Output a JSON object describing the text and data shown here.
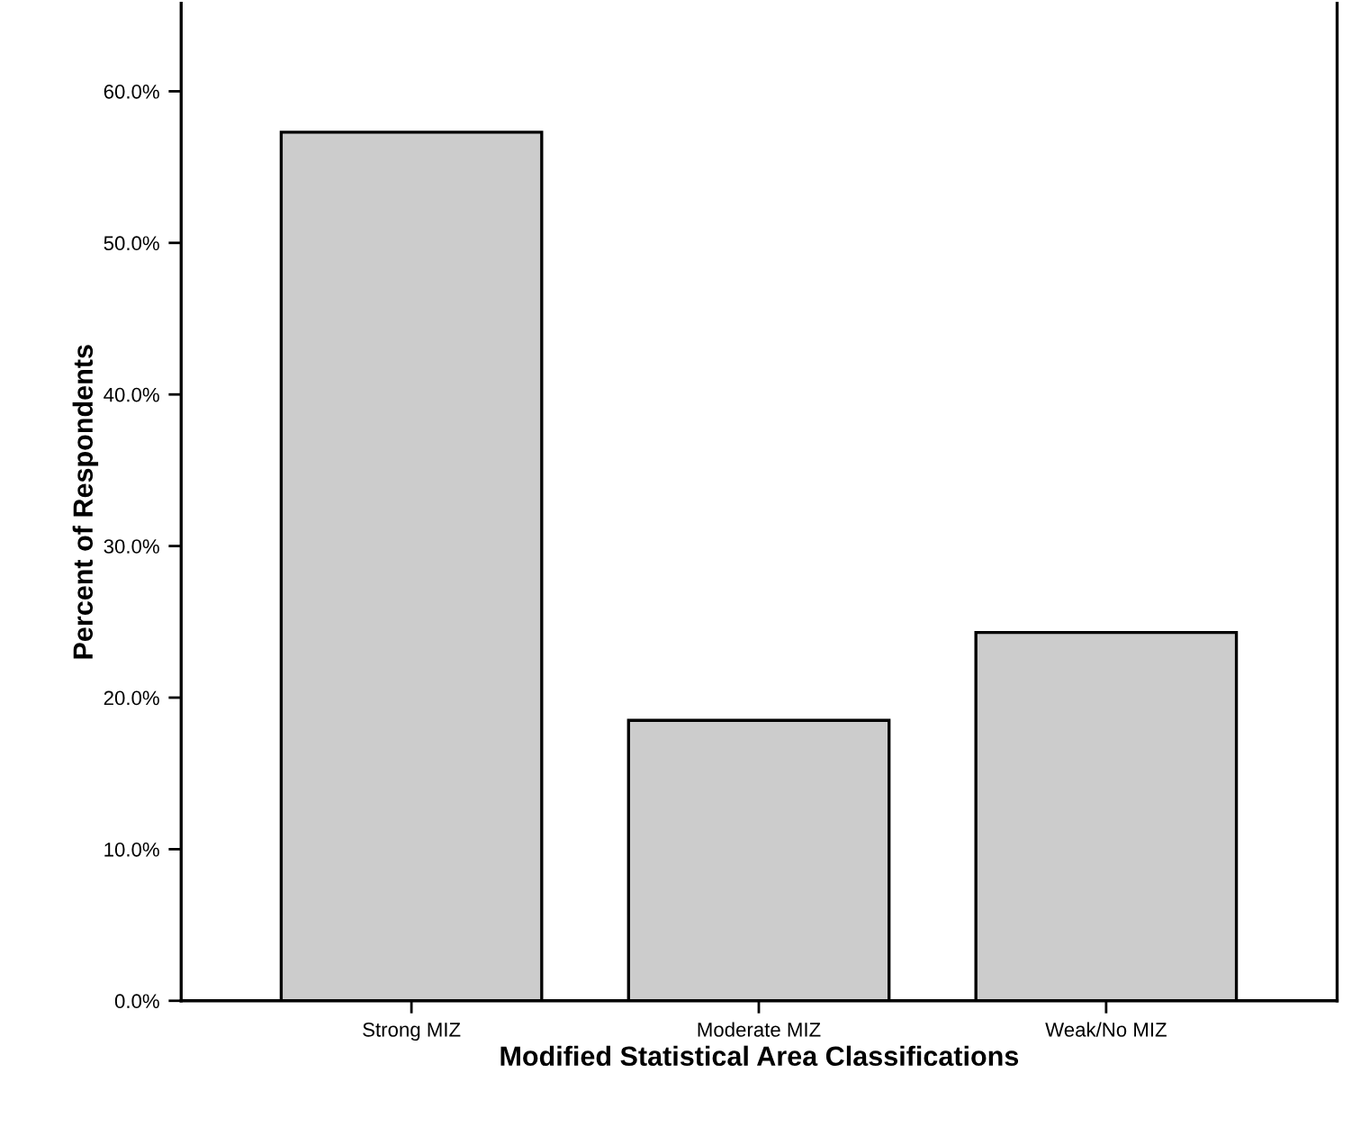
{
  "chart_data": {
    "type": "bar",
    "xlabel": "Modified Statistical Area Classifications",
    "ylabel": "Percent of Respondents",
    "categories": [
      "Strong MIZ",
      "Moderate MIZ",
      "Weak/No MIZ"
    ],
    "values": [
      57.3,
      18.5,
      24.3
    ],
    "color": "#cccccc",
    "ylim": [
      0,
      65.8
    ],
    "yticks": [
      {
        "value": 0,
        "label": "0.0%"
      },
      {
        "value": 10,
        "label": "10.0%"
      },
      {
        "value": 20,
        "label": "20.0%"
      },
      {
        "value": 30,
        "label": "30.0%"
      },
      {
        "value": 40,
        "label": "40.0%"
      },
      {
        "value": 50,
        "label": "50.0%"
      },
      {
        "value": 60,
        "label": "60.0%"
      }
    ],
    "grid": false
  }
}
